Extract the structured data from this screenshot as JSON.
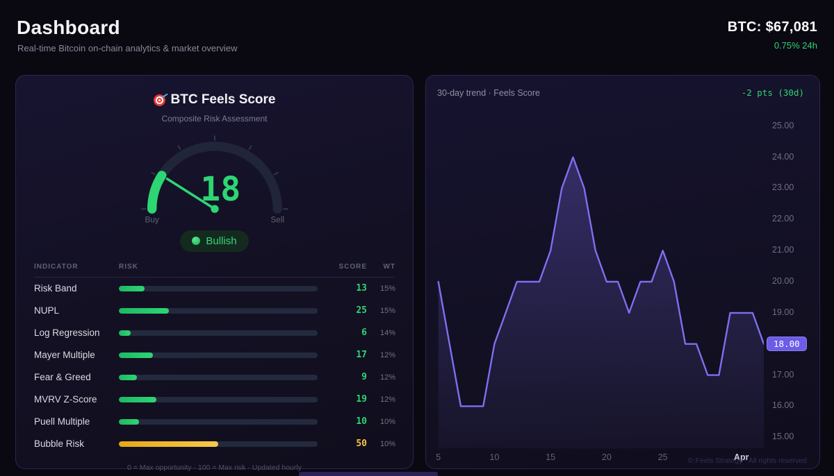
{
  "header": {
    "title": "Dashboard",
    "subtitle": "Real-time Bitcoin on-chain analytics & market overview",
    "btc_price": "BTC: $67,081",
    "btc_change": "0.75% 24h"
  },
  "icons": {
    "title_icon": "target-dart",
    "sentiment_dot": "green-dot"
  },
  "score_panel": {
    "title": "BTC Feels Score",
    "subtitle": "Composite Risk Assessment",
    "score": 18,
    "gauge": {
      "min_label": "Buy",
      "max_label": "Sell",
      "min": 0,
      "max": 100
    },
    "sentiment": "Bullish",
    "table": {
      "headers": [
        "INDICATOR",
        "RISK",
        "SCORE",
        "WT"
      ],
      "rows": [
        {
          "indicator": "Risk Band",
          "score": 13,
          "weight": "15%",
          "color": "green"
        },
        {
          "indicator": "NUPL",
          "score": 25,
          "weight": "15%",
          "color": "green"
        },
        {
          "indicator": "Log Regression",
          "score": 6,
          "weight": "14%",
          "color": "green"
        },
        {
          "indicator": "Mayer Multiple",
          "score": 17,
          "weight": "12%",
          "color": "green"
        },
        {
          "indicator": "Fear & Greed",
          "score": 9,
          "weight": "12%",
          "color": "green"
        },
        {
          "indicator": "MVRV Z-Score",
          "score": 19,
          "weight": "12%",
          "color": "green"
        },
        {
          "indicator": "Puell Multiple",
          "score": 10,
          "weight": "10%",
          "color": "green"
        },
        {
          "indicator": "Bubble Risk",
          "score": 50,
          "weight": "10%",
          "color": "yellow"
        }
      ]
    },
    "footnote": "0 = Max opportunity · 100 = Max risk · Updated hourly"
  },
  "trend_panel": {
    "title": "30-day trend · Feels Score",
    "delta": "-2 pts (30d)",
    "current_value_label": "18.00",
    "watermark": "© Feels Strategy · All rights reserved"
  },
  "chart_data": {
    "type": "area",
    "title": "30-day trend · Feels Score",
    "x": [
      5,
      6,
      7,
      8,
      9,
      10,
      11,
      12,
      13,
      14,
      15,
      16,
      17,
      18,
      19,
      20,
      21,
      22,
      23,
      24,
      25,
      26,
      27,
      28,
      29,
      30,
      31,
      32,
      33,
      34
    ],
    "values": [
      20,
      18,
      16,
      16,
      16,
      18,
      19,
      20,
      20,
      20,
      21,
      23,
      24,
      23,
      21,
      20,
      20,
      19,
      20,
      20,
      21,
      20,
      18,
      18,
      17,
      17,
      19,
      19,
      19,
      18
    ],
    "x_tick_labels": [
      {
        "label": "5",
        "day": 5
      },
      {
        "label": "10",
        "day": 10
      },
      {
        "label": "15",
        "day": 15
      },
      {
        "label": "20",
        "day": 20
      },
      {
        "label": "25",
        "day": 25
      },
      {
        "label": "Apr",
        "day": 32,
        "emphasis": true
      }
    ],
    "y_ticks": [
      15,
      16,
      17,
      18,
      19,
      20,
      21,
      22,
      23,
      24,
      25
    ],
    "ylim": [
      15,
      25
    ],
    "current_value": 18,
    "xlabel": "",
    "ylabel": "",
    "grid": false,
    "legend": false,
    "line_color": "#7e6ff0"
  },
  "colors": {
    "accent_green": "#2ed573",
    "accent_yellow": "#f5c542",
    "accent_purple": "#6c5ce7",
    "line_purple": "#7e6ff0",
    "gauge_track": "#202539"
  }
}
